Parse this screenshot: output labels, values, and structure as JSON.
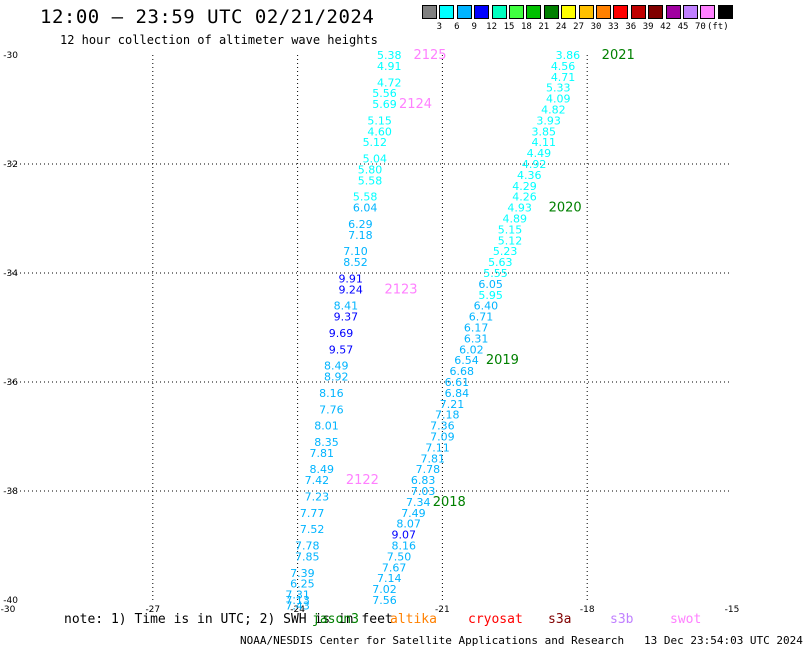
{
  "title": "12:00 — 23:59 UTC 02/21/2024",
  "subtitle": "12 hour collection of altimeter wave heights",
  "colorbar": {
    "labels": [
      "3",
      "6",
      "9",
      "12",
      "15",
      "18",
      "21",
      "24",
      "27",
      "30",
      "33",
      "36",
      "39",
      "42",
      "45",
      "70",
      "(ft)"
    ],
    "colors": [
      "#808080",
      "#00ffff",
      "#00b4ff",
      "#0000ff",
      "#00ffc0",
      "#40ff40",
      "#00c000",
      "#008000",
      "#ffff00",
      "#ffc000",
      "#ff8000",
      "#ff0000",
      "#c00000",
      "#800000",
      "#a000a0",
      "#c080ff",
      "#ff80ff",
      "#000000"
    ]
  },
  "note": "note: 1) Time is in UTC; 2) SWH is in feet",
  "missions": [
    {
      "name": "jason3",
      "color": "#008000"
    },
    {
      "name": "altika",
      "color": "#ff8000"
    },
    {
      "name": "cryosat",
      "color": "#ff0000"
    },
    {
      "name": "s3a",
      "color": "#800000"
    },
    {
      "name": "s3b",
      "color": "#c080ff"
    },
    {
      "name": "swot",
      "color": "#ff80ff"
    }
  ],
  "credit": "NOAA/NESDIS Center for Satellite Applications and Research   13 Dec 23:54:03 UTC 2024",
  "chart_data": {
    "type": "scatter",
    "title": "12:00 — 23:59 UTC 02/21/2024",
    "subtitle": "12 hour collection of altimeter wave heights",
    "xlabel": "",
    "ylabel": "",
    "xlim": [
      -30,
      -15
    ],
    "ylim": [
      -40,
      -30
    ],
    "x_ticks": [
      -30,
      -27,
      -24,
      -21,
      -18,
      -15
    ],
    "y_ticks": [
      -30,
      -32,
      -34,
      -36,
      -38,
      -40
    ],
    "grid": true,
    "units": "ft",
    "series": [
      {
        "name": "swot",
        "color": "#ff80ff",
        "points": [
          [
            -22.1,
            -30.0,
            5.38
          ],
          [
            -22.1,
            -30.2,
            4.91
          ],
          [
            -22.1,
            -30.5,
            4.72
          ],
          [
            -22.2,
            -30.7,
            5.56
          ],
          [
            -22.2,
            -30.9,
            5.69
          ],
          [
            -22.3,
            -31.2,
            5.15
          ],
          [
            -22.3,
            -31.4,
            4.6
          ],
          [
            -22.4,
            -31.6,
            5.12
          ],
          [
            -22.4,
            -31.9,
            5.04
          ],
          [
            -22.5,
            -32.1,
            5.8
          ],
          [
            -22.5,
            -32.3,
            5.58
          ],
          [
            -22.6,
            -32.6,
            5.58
          ],
          [
            -22.6,
            -32.8,
            6.04
          ],
          [
            -22.7,
            -33.1,
            6.29
          ],
          [
            -22.7,
            -33.3,
            7.18
          ],
          [
            -22.8,
            -33.6,
            7.1
          ],
          [
            -22.8,
            -33.8,
            8.52
          ],
          [
            -22.9,
            -34.1,
            9.91
          ],
          [
            -22.9,
            -34.3,
            9.24
          ],
          [
            -23.0,
            -34.6,
            8.41
          ],
          [
            -23.0,
            -34.8,
            9.37
          ],
          [
            -23.1,
            -35.1,
            9.69
          ],
          [
            -23.1,
            -35.4,
            9.57
          ],
          [
            -23.2,
            -35.7,
            8.49
          ],
          [
            -23.2,
            -35.9,
            8.92
          ],
          [
            -23.3,
            -36.2,
            8.16
          ],
          [
            -23.3,
            -36.5,
            7.76
          ],
          [
            -23.4,
            -36.8,
            8.01
          ],
          [
            -23.4,
            -37.1,
            8.35
          ],
          [
            -23.5,
            -37.3,
            7.81
          ],
          [
            -23.5,
            -37.6,
            8.49
          ],
          [
            -23.6,
            -37.8,
            7.42
          ],
          [
            -23.6,
            -38.1,
            7.23
          ],
          [
            -23.7,
            -38.4,
            7.77
          ],
          [
            -23.7,
            -38.7,
            7.52
          ],
          [
            -23.8,
            -39.0,
            7.78
          ],
          [
            -23.8,
            -39.2,
            7.85
          ],
          [
            -23.9,
            -39.5,
            7.39
          ],
          [
            -23.9,
            -39.7,
            6.25
          ],
          [
            -24.0,
            -39.9,
            7.31
          ],
          [
            -24.0,
            -40.0,
            7.13
          ],
          [
            -24.0,
            -40.1,
            7.43
          ]
        ],
        "labels": [
          {
            "text": "2125",
            "x": -21.6,
            "y": -30.0
          },
          {
            "text": "2124",
            "x": -21.9,
            "y": -30.9
          },
          {
            "text": "2123",
            "x": -22.2,
            "y": -34.3
          },
          {
            "text": "2122",
            "x": -23.0,
            "y": -37.8
          }
        ]
      },
      {
        "name": "jason3",
        "color": "#008000",
        "points": [
          [
            -18.4,
            -30.0,
            3.86
          ],
          [
            -18.5,
            -30.2,
            4.56
          ],
          [
            -18.5,
            -30.4,
            4.71
          ],
          [
            -18.6,
            -30.6,
            5.33
          ],
          [
            -18.6,
            -30.8,
            4.09
          ],
          [
            -18.7,
            -31.0,
            4.82
          ],
          [
            -18.8,
            -31.2,
            3.93
          ],
          [
            -18.9,
            -31.4,
            3.85
          ],
          [
            -18.9,
            -31.6,
            4.11
          ],
          [
            -19.0,
            -31.8,
            4.49
          ],
          [
            -19.1,
            -32.0,
            4.92
          ],
          [
            -19.2,
            -32.2,
            4.36
          ],
          [
            -19.3,
            -32.4,
            4.29
          ],
          [
            -19.3,
            -32.6,
            4.26
          ],
          [
            -19.4,
            -32.8,
            4.93
          ],
          [
            -19.5,
            -33.0,
            4.89
          ],
          [
            -19.6,
            -33.2,
            5.15
          ],
          [
            -19.6,
            -33.4,
            5.12
          ],
          [
            -19.7,
            -33.6,
            5.23
          ],
          [
            -19.8,
            -33.8,
            5.63
          ],
          [
            -19.9,
            -34.0,
            5.55
          ],
          [
            -20.0,
            -34.2,
            6.05
          ],
          [
            -20.0,
            -34.4,
            5.95
          ],
          [
            -20.1,
            -34.6,
            6.4
          ],
          [
            -20.2,
            -34.8,
            6.71
          ],
          [
            -20.3,
            -35.0,
            6.17
          ],
          [
            -20.3,
            -35.2,
            6.31
          ],
          [
            -20.4,
            -35.4,
            6.02
          ],
          [
            -20.5,
            -35.6,
            6.54
          ],
          [
            -20.6,
            -35.8,
            6.68
          ],
          [
            -20.7,
            -36.0,
            6.61
          ],
          [
            -20.7,
            -36.2,
            6.84
          ],
          [
            -20.8,
            -36.4,
            7.21
          ],
          [
            -20.9,
            -36.6,
            7.18
          ],
          [
            -21.0,
            -36.8,
            7.36
          ],
          [
            -21.0,
            -37.0,
            7.09
          ],
          [
            -21.1,
            -37.2,
            7.11
          ],
          [
            -21.2,
            -37.4,
            7.81
          ],
          [
            -21.3,
            -37.6,
            7.78
          ],
          [
            -21.4,
            -37.8,
            6.83
          ],
          [
            -21.4,
            -38.0,
            7.03
          ],
          [
            -21.5,
            -38.2,
            7.34
          ],
          [
            -21.6,
            -38.4,
            7.49
          ],
          [
            -21.7,
            -38.6,
            8.07
          ],
          [
            -21.8,
            -38.8,
            9.07
          ],
          [
            -21.8,
            -39.0,
            8.16
          ],
          [
            -21.9,
            -39.2,
            7.5
          ],
          [
            -22.0,
            -39.4,
            7.67
          ],
          [
            -22.1,
            -39.6,
            7.14
          ],
          [
            -22.2,
            -39.8,
            7.02
          ],
          [
            -22.2,
            -40.0,
            7.56
          ]
        ],
        "labels": [
          {
            "text": "2021",
            "x": -17.7,
            "y": -30.0
          },
          {
            "text": "2020",
            "x": -18.8,
            "y": -32.8
          },
          {
            "text": "2019",
            "x": -20.1,
            "y": -35.6
          },
          {
            "text": "2018",
            "x": -21.2,
            "y": -38.2
          }
        ]
      }
    ]
  }
}
